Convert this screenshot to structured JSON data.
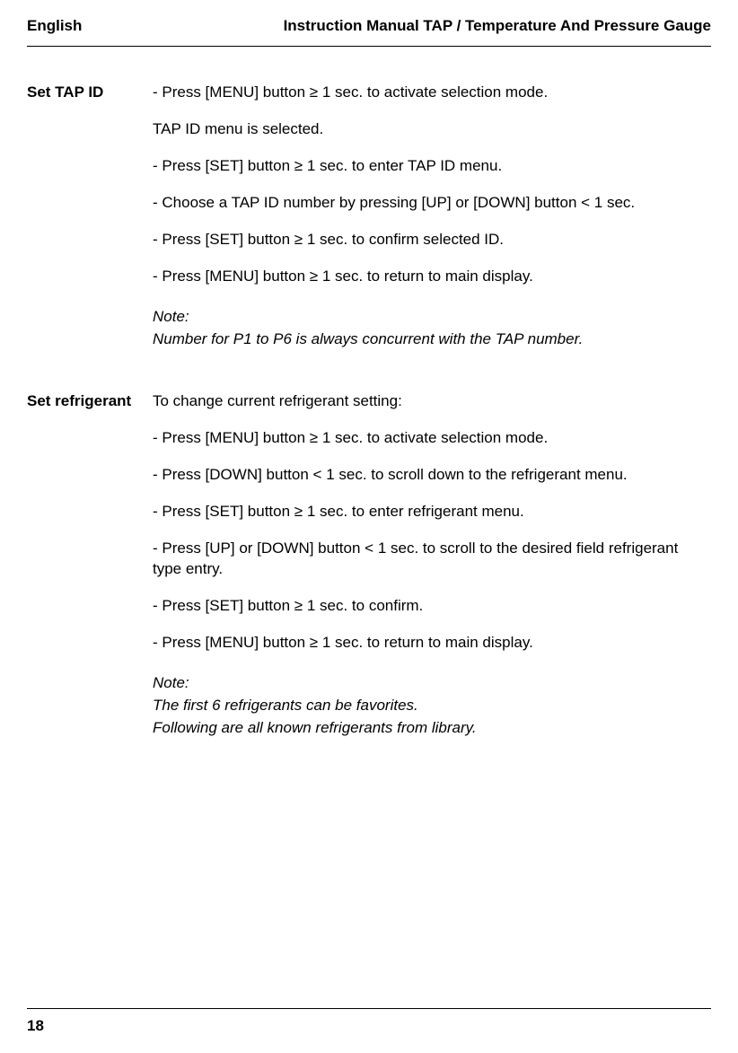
{
  "header": {
    "left": "English",
    "right": "Instruction Manual TAP / Temperature And Pressure Gauge"
  },
  "sections": [
    {
      "label": "Set TAP ID",
      "lines": [
        "- Press [MENU] button ≥ 1 sec. to activate selection mode.",
        " TAP ID menu is selected.",
        "- Press [SET] button ≥ 1 sec. to enter TAP ID menu.",
        "- Choose a TAP ID number by pressing [UP] or [DOWN] button < 1 sec.",
        "- Press [SET] button ≥ 1 sec. to confirm selected ID.",
        "- Press [MENU] button ≥ 1 sec. to return to main display."
      ],
      "note_label": "Note:",
      "note_lines": [
        "Number for P1 to P6 is always concurrent with the TAP number."
      ]
    },
    {
      "label": "Set refrigerant",
      "lines": [
        "To change current refrigerant setting:",
        "- Press [MENU] button ≥ 1 sec. to activate selection mode.",
        "- Press [DOWN] button < 1 sec. to scroll down to the refrigerant menu.",
        "- Press [SET] button ≥ 1 sec. to enter refrigerant menu.",
        "- Press [UP] or [DOWN] button < 1 sec. to scroll to the desired field refrigerant type entry.",
        "- Press [SET] button ≥ 1 sec. to confirm.",
        "- Press [MENU] button ≥ 1 sec. to return to main display."
      ],
      "note_label": "Note:",
      "note_lines": [
        "The first 6 refrigerants can be favorites.",
        "Following are all known refrigerants from library."
      ]
    }
  ],
  "footer": {
    "page_number": "18"
  }
}
